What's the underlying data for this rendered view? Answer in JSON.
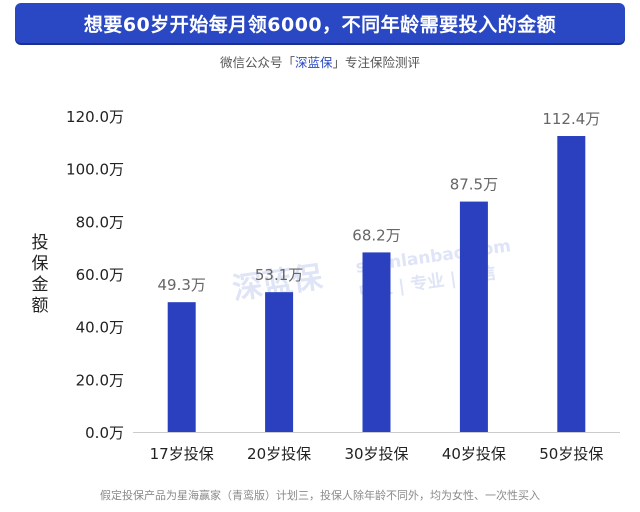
{
  "banner": {
    "title": "想要60岁开始每月领6000，不同年龄需要投入的金额"
  },
  "subtitle": {
    "prefix": "微信公众号「",
    "brand": "深蓝保",
    "suffix": "」专注保险测评"
  },
  "footer": {
    "note": "假定投保产品为星海赢家（青鸾版）计划三，投保人除年龄不同外，均为女性、一次性买入"
  },
  "watermark": {
    "logo": "深蓝保",
    "site": "shenlanbao.com",
    "tagline": "中立 | 专业 | 可信"
  },
  "colors": {
    "bar": "#2a40bf",
    "banner": "#2a48c4",
    "value_label": "#666666",
    "axis_text": "#222222"
  },
  "chart_data": {
    "type": "bar",
    "categories": [
      "17岁投保",
      "20岁投保",
      "30岁投保",
      "40岁投保",
      "50岁投保"
    ],
    "values": [
      49.3,
      53.1,
      68.2,
      87.5,
      112.4
    ],
    "value_labels": [
      "49.3万",
      "53.1万",
      "68.2万",
      "87.5万",
      "112.4万"
    ],
    "ylabel": "投保金额",
    "ylim": [
      0,
      120
    ],
    "yticks": [
      0,
      20,
      40,
      60,
      80,
      100,
      120
    ],
    "ytick_labels": [
      "0.0万",
      "20.0万",
      "40.0万",
      "60.0万",
      "80.0万",
      "100.0万",
      "120.0万"
    ],
    "grid": false,
    "legend": "none"
  }
}
